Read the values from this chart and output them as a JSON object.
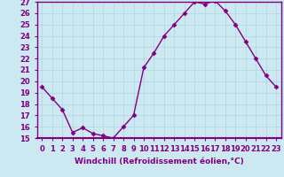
{
  "hours": [
    0,
    1,
    2,
    3,
    4,
    5,
    6,
    7,
    8,
    9,
    10,
    11,
    12,
    13,
    14,
    15,
    16,
    17,
    18,
    19,
    20,
    21,
    22,
    23
  ],
  "values": [
    19.5,
    18.5,
    17.5,
    15.5,
    15.9,
    15.4,
    15.2,
    15.0,
    16.0,
    17.0,
    21.2,
    22.5,
    24.0,
    25.0,
    26.0,
    27.0,
    26.8,
    27.1,
    26.2,
    25.0,
    23.5,
    22.0,
    20.5,
    19.5
  ],
  "line_color": "#800080",
  "marker": "D",
  "marker_size": 2.5,
  "bg_color": "#cce8f0",
  "grid_color": "#aaccdd",
  "xlabel": "Windchill (Refroidissement éolien,°C)",
  "ylim": [
    15,
    27
  ],
  "xlim": [
    -0.5,
    23.5
  ],
  "yticks": [
    15,
    16,
    17,
    18,
    19,
    20,
    21,
    22,
    23,
    24,
    25,
    26,
    27
  ],
  "xticks": [
    0,
    1,
    2,
    3,
    4,
    5,
    6,
    7,
    8,
    9,
    10,
    11,
    12,
    13,
    14,
    15,
    16,
    17,
    18,
    19,
    20,
    21,
    22,
    23
  ],
  "xlabel_fontsize": 6.5,
  "tick_fontsize": 6.0,
  "line_width": 1.0,
  "spine_color": "#800080",
  "axis_bg": "#c8e8f0"
}
